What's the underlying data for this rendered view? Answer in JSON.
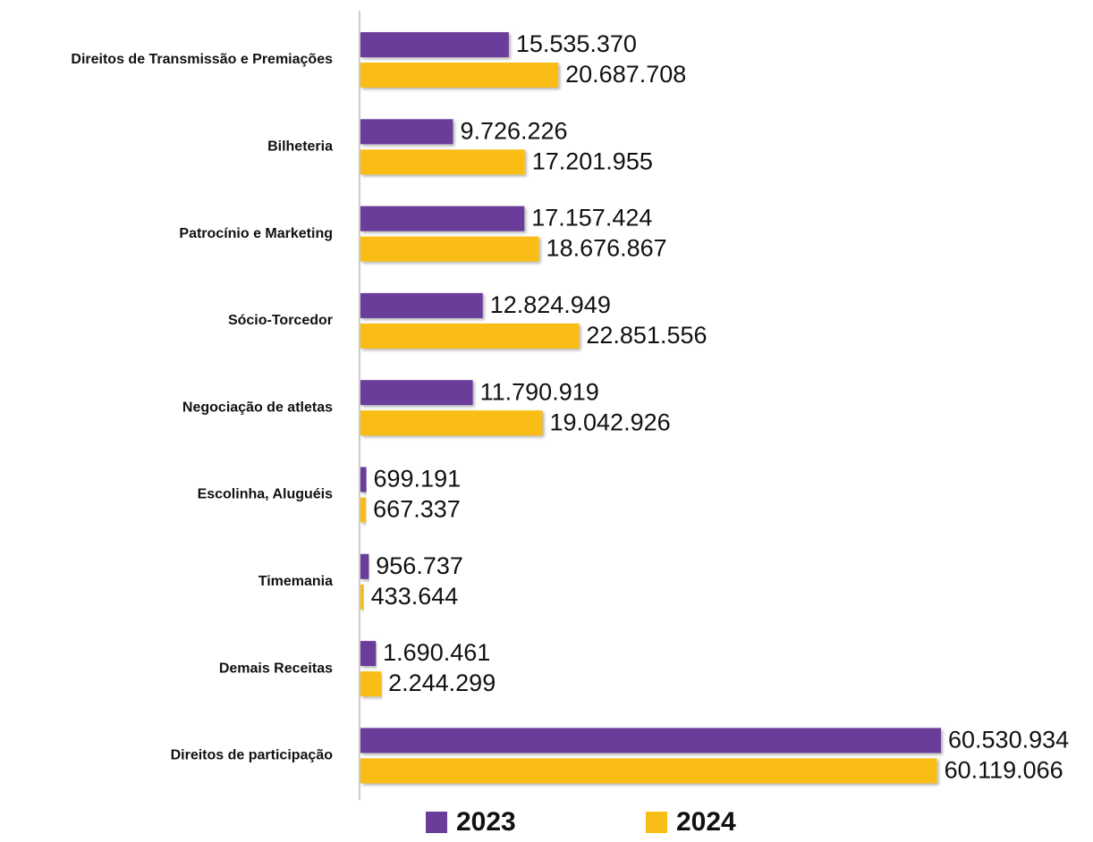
{
  "chart_data": {
    "type": "bar",
    "orientation": "horizontal",
    "categories": [
      "Direitos de Transmissão e Premiações",
      "Bilheteria",
      "Patrocínio e Marketing",
      "Sócio-Torcedor",
      "Negociação de atletas",
      "Escolinha, Aluguéis",
      "Timemania",
      "Demais Receitas",
      "Direitos de participação"
    ],
    "series": [
      {
        "name": "2023",
        "color": "#6a3d9a",
        "values": [
          15535370,
          9726226,
          17157424,
          12824949,
          11790919,
          699191,
          956737,
          1690461,
          60530934
        ],
        "value_labels": [
          "15.535.370",
          "9.726.226",
          "17.157.424",
          "12.824.949",
          "11.790.919",
          "699.191",
          "956.737",
          "1.690.461",
          "60.530.934"
        ]
      },
      {
        "name": "2024",
        "color": "#f9bd17",
        "values": [
          20687708,
          17201955,
          18676867,
          22851556,
          19042926,
          667337,
          433644,
          2244299,
          60119066
        ],
        "value_labels": [
          "20.687.708",
          "17.201.955",
          "18.676.867",
          "22.851.556",
          "19.042.926",
          "667.337",
          "433.644",
          "2.244.299",
          "60.119.066"
        ]
      }
    ],
    "legend": "bottom"
  }
}
